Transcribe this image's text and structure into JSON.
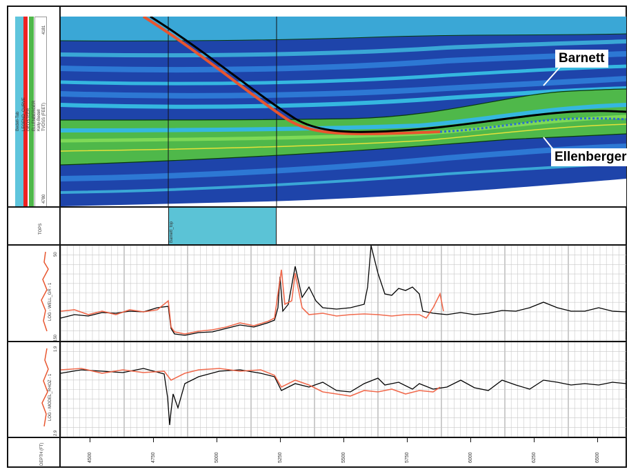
{
  "header_panel": {
    "labels": [
      "Bedell-Tab",
      "LEGEND_CURVE",
      "GEOSTEER",
      "ELLENBERGER",
      "Kelly-Bedell",
      "TVDSS (FEET)"
    ],
    "top_value": "4181",
    "bottom_value": "4780"
  },
  "formations": {
    "upper": "Barnett",
    "lower": "Ellenberger"
  },
  "tops_track": {
    "label": "TOPS",
    "marker_label": "Barnett_top"
  },
  "log_track_1": {
    "label": "LOG - WELL_GR - 1",
    "scale_top": "50",
    "scale_bottom": "150"
  },
  "log_track_2": {
    "label": "LOG - MODEL_RHOZ - 1",
    "scale_top": "1.9",
    "scale_bottom": "2.9"
  },
  "depth_track": {
    "label": "DEPTH (FT)",
    "ticks": [
      "4500",
      "4750",
      "5000",
      "5250",
      "5500",
      "5750",
      "6000",
      "6250",
      "6500"
    ]
  },
  "colors": {
    "deep_blue": "#1c3fa6",
    "mid_blue": "#2d78d4",
    "cyan": "#35b7e0",
    "green": "#5cc24a",
    "well_path_red": "#e8552e",
    "well_path_black": "#000000",
    "tops_fill": "#5bc3d6",
    "header_cyan": "#5fc5dd",
    "header_red": "#ee2222",
    "header_green": "#4fb84a"
  }
}
